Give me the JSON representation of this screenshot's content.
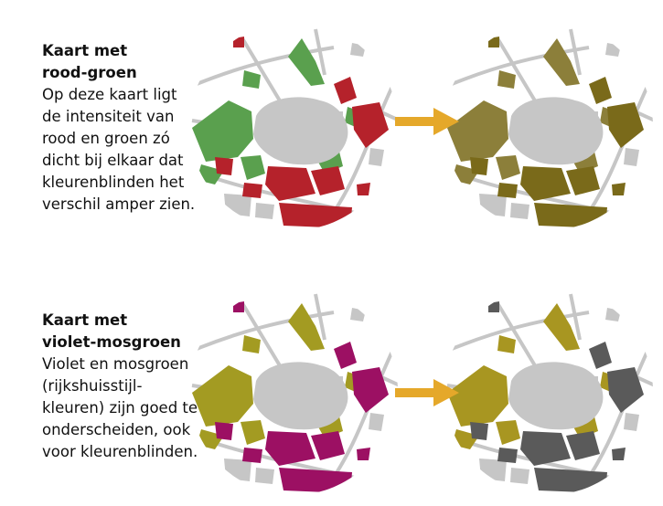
{
  "sections": [
    {
      "title_lines": [
        "Kaart met",
        "rood-groen"
      ],
      "body_lines": [
        "Op deze kaart ligt",
        "de intensiteit van",
        "rood en groen zó",
        "dicht bij elkaar dat",
        "kleurenblinden het",
        "verschil amper zien."
      ],
      "colors": {
        "a": "#5aa04e",
        "b": "#b5222b",
        "a_sim": "#8c7f3a",
        "b_sim": "#7a6a1a"
      }
    },
    {
      "title_lines": [
        "Kaart met",
        "violet-mosgroen"
      ],
      "body_lines": [
        "Violet en mosgroen",
        "(rijkshuisstijl-",
        "kleuren) zijn goed te",
        "onderscheiden, ook",
        "voor kleurenblinden."
      ],
      "colors": {
        "a": "#a39b22",
        "b": "#9c1063",
        "a_sim": "#a89621",
        "b_sim": "#5a5a5a"
      }
    }
  ],
  "map_base_color": "#c6c6c6",
  "road_color": "#c6c6c6",
  "arrow_color": "#e5a82a",
  "arrow_icon": "arrow-right-icon"
}
